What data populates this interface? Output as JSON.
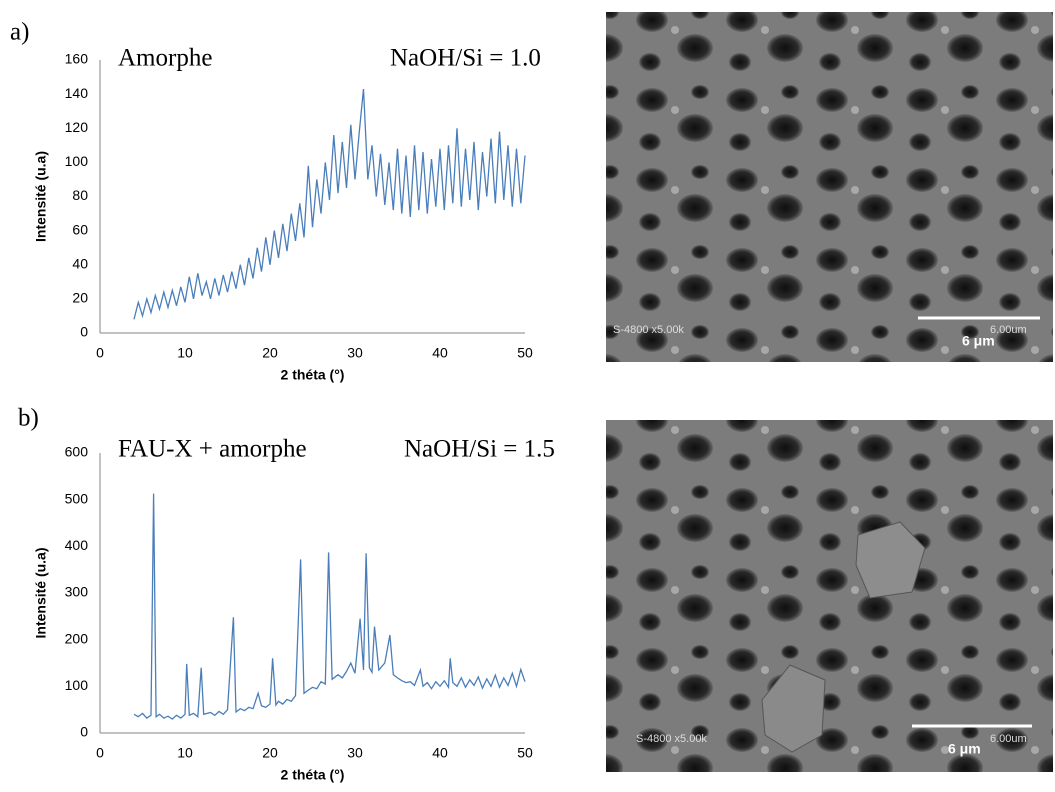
{
  "panel_labels": [
    "a)",
    "b)"
  ],
  "chart_data": [
    {
      "type": "line",
      "annotations": [
        "Amorphe",
        "NaOH/Si = 1.0"
      ],
      "xlabel": "2 théta (°)",
      "ylabel": "Intensité (u.a)",
      "color": "#4a7ebb",
      "xlim": [
        0,
        50
      ],
      "xticks": [
        0,
        10,
        20,
        30,
        40,
        50
      ],
      "ylim": [
        0,
        160
      ],
      "yticks": [
        0,
        20,
        40,
        60,
        80,
        100,
        120,
        140,
        160
      ],
      "x": [
        4,
        4.5,
        5,
        5.5,
        6,
        6.5,
        7,
        7.5,
        8,
        8.5,
        9,
        9.5,
        10,
        10.5,
        11,
        11.5,
        12,
        12.5,
        13,
        13.5,
        14,
        14.5,
        15,
        15.5,
        16,
        16.5,
        17,
        17.5,
        18,
        18.5,
        19,
        19.5,
        20,
        20.5,
        21,
        21.5,
        22,
        22.5,
        23,
        23.5,
        24,
        24.5,
        25,
        25.5,
        26,
        26.5,
        27,
        27.5,
        28,
        28.5,
        29,
        29.5,
        30,
        30.5,
        31,
        31.5,
        32,
        32.5,
        33,
        33.5,
        34,
        34.5,
        35,
        35.5,
        36,
        36.5,
        37,
        37.5,
        38,
        38.5,
        39,
        39.5,
        40,
        40.5,
        41,
        41.5,
        42,
        42.5,
        43,
        43.5,
        44,
        44.5,
        45,
        45.5,
        46,
        46.5,
        47,
        47.5,
        48,
        48.5,
        49,
        49.5,
        50
      ],
      "values": [
        8,
        18,
        10,
        20,
        12,
        22,
        14,
        24,
        15,
        25,
        16,
        27,
        18,
        33,
        20,
        35,
        22,
        30,
        20,
        32,
        22,
        34,
        24,
        36,
        26,
        40,
        28,
        44,
        32,
        50,
        36,
        56,
        40,
        60,
        44,
        64,
        48,
        70,
        54,
        76,
        56,
        98,
        62,
        90,
        70,
        100,
        78,
        116,
        82,
        112,
        85,
        122,
        90,
        118,
        143,
        90,
        110,
        80,
        105,
        75,
        100,
        72,
        108,
        70,
        104,
        68,
        110,
        72,
        106,
        70,
        102,
        74,
        108,
        72,
        110,
        76,
        120,
        74,
        108,
        78,
        112,
        72,
        106,
        80,
        114,
        76,
        118,
        78,
        110,
        74,
        108,
        76,
        104
      ]
    },
    {
      "type": "line",
      "annotations": [
        "FAU-X + amorphe",
        "NaOH/Si = 1.5"
      ],
      "xlabel": "2 théta (°)",
      "ylabel": "Intensité (u.a)",
      "color": "#4a7ebb",
      "xlim": [
        0,
        50
      ],
      "xticks": [
        0,
        10,
        20,
        30,
        40,
        50
      ],
      "ylim": [
        0,
        600
      ],
      "yticks": [
        0,
        100,
        200,
        300,
        400,
        500,
        600
      ],
      "x": [
        4,
        4.5,
        5,
        5.5,
        6,
        6.3,
        6.6,
        7,
        7.5,
        8,
        8.5,
        9,
        9.5,
        10,
        10.2,
        10.5,
        11,
        11.5,
        11.9,
        12.2,
        13,
        13.5,
        14,
        14.5,
        15,
        15.7,
        16,
        16.5,
        17,
        17.5,
        18,
        18.6,
        19,
        19.5,
        20,
        20.3,
        20.7,
        21,
        21.5,
        22,
        22.5,
        23,
        23.6,
        24,
        24.5,
        25,
        25.5,
        26,
        26.5,
        26.9,
        27.3,
        28,
        28.5,
        29,
        29.5,
        30,
        30.6,
        31,
        31.3,
        31.7,
        32,
        32.3,
        32.8,
        33.5,
        34.1,
        34.5,
        35,
        35.5,
        36,
        36.5,
        37,
        37.7,
        38,
        38.5,
        39,
        39.5,
        40,
        40.5,
        41,
        41.2,
        41.5,
        42,
        42.5,
        43,
        43.5,
        44,
        44.5,
        45,
        45.5,
        46,
        46.5,
        47,
        47.5,
        48,
        48.5,
        49,
        49.5,
        50
      ],
      "values": [
        40,
        35,
        42,
        32,
        38,
        513,
        35,
        40,
        32,
        36,
        30,
        38,
        32,
        40,
        148,
        38,
        42,
        35,
        140,
        40,
        44,
        38,
        46,
        40,
        50,
        248,
        45,
        52,
        48,
        55,
        52,
        85,
        58,
        55,
        62,
        160,
        60,
        68,
        62,
        72,
        68,
        80,
        372,
        85,
        92,
        98,
        95,
        110,
        105,
        387,
        115,
        125,
        118,
        132,
        150,
        128,
        245,
        135,
        385,
        140,
        130,
        228,
        135,
        150,
        210,
        125,
        118,
        112,
        108,
        110,
        102,
        135,
        100,
        108,
        95,
        110,
        100,
        112,
        98,
        160,
        108,
        100,
        118,
        98,
        114,
        102,
        120,
        96,
        116,
        100,
        124,
        98,
        118,
        102,
        128,
        100,
        136,
        110
      ]
    }
  ],
  "images": [
    {
      "instrument": "S-4800 x5.00k",
      "scale_text": "6.00um",
      "scale_label": "6 μm"
    },
    {
      "instrument": "S-4800 x5.00k",
      "scale_text": "6.00um",
      "scale_label": "6 μm"
    }
  ]
}
